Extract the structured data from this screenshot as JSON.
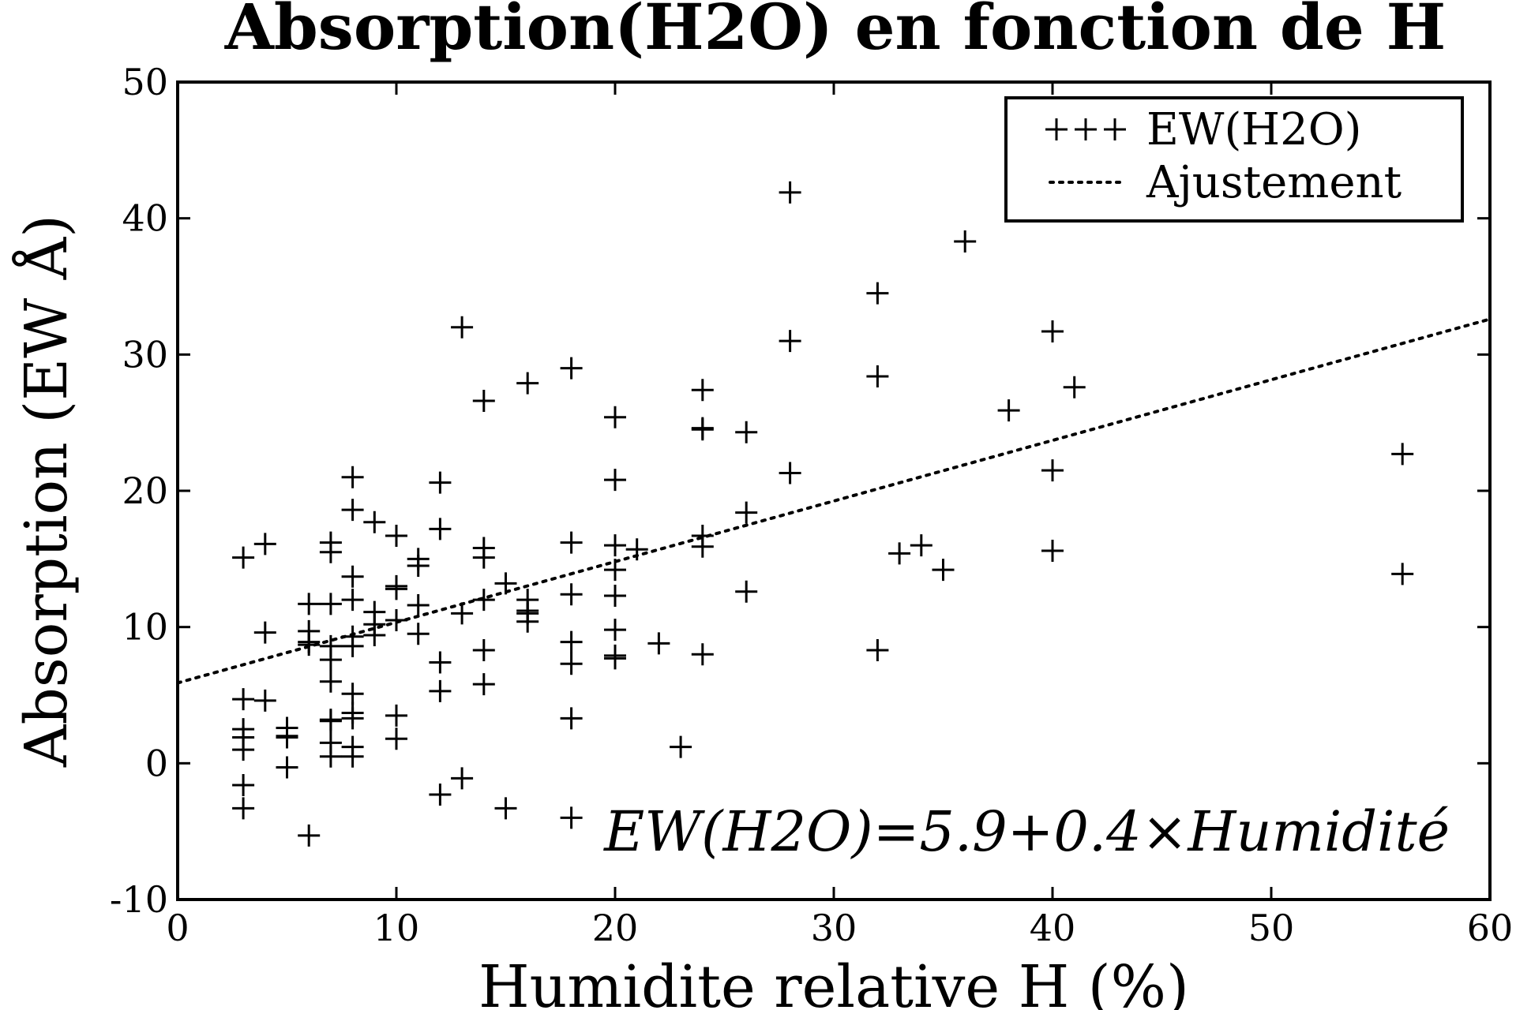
{
  "chart_data": {
    "type": "scatter",
    "title": "Absorption(H2O) en fonction de H",
    "xlabel": "Humidite relative H (%)",
    "ylabel": "Absorption (EW Å)",
    "xlim": [
      0,
      60
    ],
    "ylim": [
      -10,
      50
    ],
    "xticks": [
      "0",
      "10",
      "20",
      "30",
      "40",
      "50",
      "60"
    ],
    "yticks": [
      "-10",
      "0",
      "10",
      "20",
      "30",
      "40",
      "50"
    ],
    "xtick_values": [
      0,
      10,
      20,
      30,
      40,
      50,
      60
    ],
    "ytick_values": [
      -10,
      0,
      10,
      20,
      30,
      40,
      50
    ],
    "grid": false,
    "legend_position": "top-right",
    "annotation": "EW(H2O)=5.9+0.4×Humidité",
    "fit": {
      "intercept": 5.9,
      "slope": 0.445
    },
    "series": [
      {
        "name": "EW(H2O)",
        "marker": "+",
        "color": "#000000",
        "x": [
          3,
          3,
          3,
          3,
          3,
          3,
          3,
          4,
          4,
          4,
          5,
          5,
          5,
          5,
          6,
          6,
          6,
          6,
          6,
          7,
          7,
          7,
          7,
          7,
          7,
          7,
          7,
          7,
          7,
          8,
          8,
          8,
          8,
          8,
          8,
          8,
          8,
          8,
          8,
          8,
          9,
          9,
          9,
          9,
          10,
          10,
          10,
          10,
          10,
          10,
          10,
          11,
          11,
          11,
          11,
          12,
          12,
          12,
          12,
          12,
          13,
          13,
          13,
          14,
          14,
          14,
          14,
          14,
          14,
          15,
          15,
          16,
          16,
          16,
          16,
          16,
          18,
          18,
          18,
          18,
          18,
          18,
          18,
          20,
          20,
          20,
          20,
          20,
          20,
          20,
          20,
          21,
          22,
          23,
          24,
          24,
          24,
          24,
          24,
          24,
          26,
          26,
          26,
          28,
          28,
          28,
          32,
          32,
          32,
          33,
          34,
          35,
          36,
          38,
          40,
          40,
          40,
          41,
          56,
          56
        ],
        "y": [
          15.1,
          4.7,
          2.5,
          1.9,
          1.0,
          -1.6,
          -3.3,
          16.1,
          9.6,
          4.6,
          2.6,
          2.0,
          1.9,
          -0.3,
          11.7,
          9.7,
          8.7,
          8.9,
          -5.3,
          16.2,
          15.5,
          11.7,
          8.6,
          7.6,
          6.0,
          3.1,
          3.2,
          1.5,
          0.5,
          21.0,
          18.6,
          13.7,
          12.0,
          9.3,
          8.6,
          5.1,
          3.7,
          3.3,
          1.2,
          0.5,
          17.7,
          11.1,
          10.2,
          9.4,
          16.7,
          13.0,
          12.8,
          10.5,
          10.5,
          3.5,
          1.8,
          15.0,
          14.5,
          11.6,
          9.5,
          20.6,
          17.2,
          7.4,
          5.3,
          -2.3,
          32.0,
          11.0,
          -1.1,
          26.6,
          15.8,
          15.1,
          12.0,
          8.3,
          5.8,
          13.2,
          -3.3,
          27.9,
          12.0,
          11.2,
          11.0,
          10.4,
          29.0,
          16.2,
          12.4,
          8.9,
          7.3,
          3.3,
          -4.0,
          25.4,
          20.8,
          16.0,
          14.2,
          12.3,
          9.8,
          7.9,
          7.7,
          15.7,
          8.8,
          1.2,
          27.4,
          24.6,
          24.5,
          16.7,
          15.9,
          8.0,
          24.3,
          18.4,
          12.6,
          41.9,
          31.0,
          21.3,
          34.5,
          28.4,
          8.3,
          15.4,
          16.0,
          14.2,
          38.3,
          25.9,
          31.7,
          21.5,
          15.6,
          27.6,
          22.7,
          13.9
        ]
      },
      {
        "name": "Ajustement",
        "type": "line",
        "style": "dotted",
        "color": "#000000",
        "x": [
          0,
          60
        ],
        "y": [
          5.9,
          32.6
        ]
      }
    ]
  }
}
